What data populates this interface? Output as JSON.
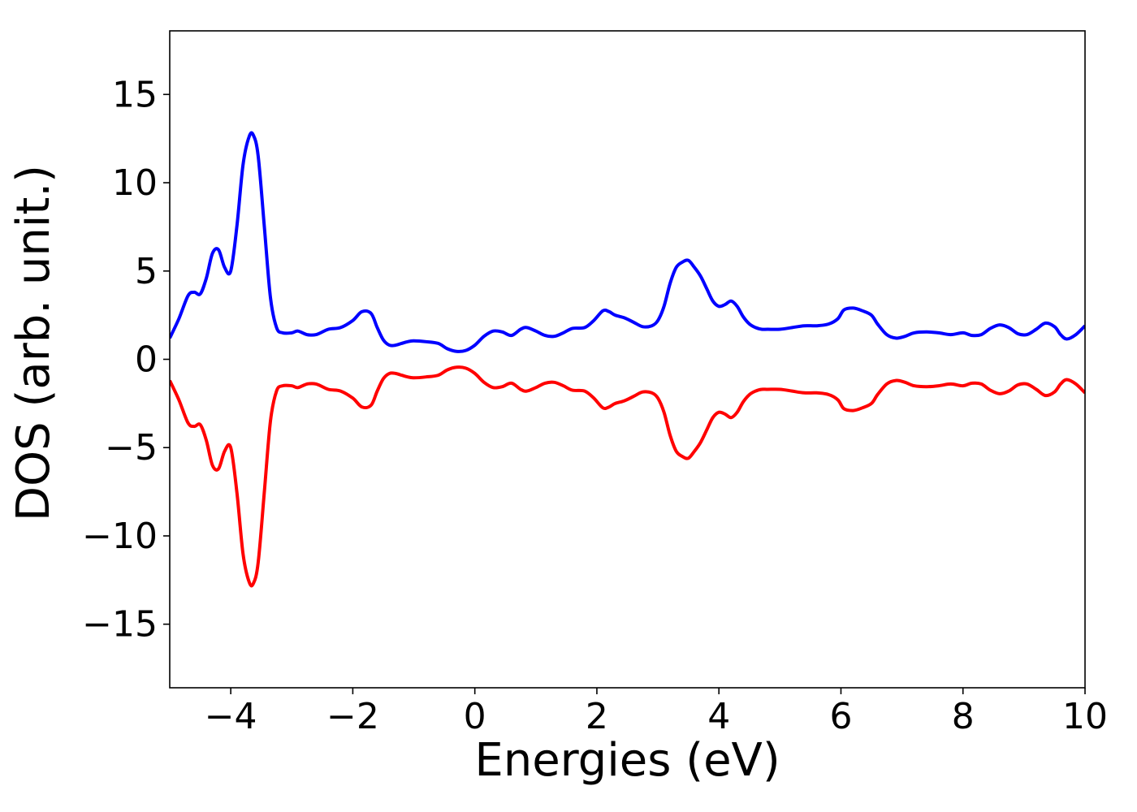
{
  "chart_data": {
    "type": "line",
    "title": "",
    "xlabel": "Energies (eV)",
    "ylabel": "DOS (arb. unit.)",
    "xlim": [
      -5,
      10
    ],
    "ylim": [
      -18.6,
      18.6
    ],
    "grid": false,
    "legend": "none",
    "x_ticks": [
      -4,
      -2,
      0,
      2,
      4,
      6,
      8,
      10
    ],
    "x_tick_labels": [
      "−4",
      "−2",
      "0",
      "2",
      "4",
      "6",
      "8",
      "10"
    ],
    "y_ticks": [
      15,
      10,
      5,
      0,
      -5,
      -10,
      -15
    ],
    "y_tick_labels": [
      "15",
      "10",
      "5",
      "0",
      "−5",
      "−10",
      "−15"
    ],
    "series": [
      {
        "color": "#0000ff",
        "x": [
          -5.0,
          -4.85,
          -4.7,
          -4.6,
          -4.5,
          -4.4,
          -4.3,
          -4.2,
          -4.1,
          -4.0,
          -3.9,
          -3.8,
          -3.7,
          -3.63,
          -3.55,
          -3.45,
          -3.35,
          -3.25,
          -3.15,
          -3.0,
          -2.9,
          -2.75,
          -2.6,
          -2.4,
          -2.2,
          -2.0,
          -1.85,
          -1.7,
          -1.6,
          -1.5,
          -1.4,
          -1.3,
          -1.2,
          -1.1,
          -1.0,
          -0.8,
          -0.6,
          -0.45,
          -0.3,
          -0.15,
          0.0,
          0.15,
          0.3,
          0.45,
          0.6,
          0.75,
          0.85,
          1.0,
          1.15,
          1.3,
          1.45,
          1.6,
          1.8,
          1.95,
          2.1,
          2.2,
          2.3,
          2.45,
          2.6,
          2.75,
          2.9,
          3.0,
          3.1,
          3.2,
          3.3,
          3.4,
          3.5,
          3.6,
          3.7,
          3.8,
          3.9,
          4.0,
          4.1,
          4.2,
          4.3,
          4.4,
          4.5,
          4.6,
          4.7,
          4.8,
          5.0,
          5.2,
          5.4,
          5.6,
          5.8,
          5.95,
          6.05,
          6.2,
          6.35,
          6.5,
          6.6,
          6.75,
          6.9,
          7.05,
          7.2,
          7.4,
          7.6,
          7.8,
          8.0,
          8.15,
          8.3,
          8.45,
          8.6,
          8.75,
          8.9,
          9.05,
          9.2,
          9.35,
          9.5,
          9.6,
          9.7,
          9.85,
          10.0
        ],
        "y": [
          1.2,
          2.3,
          3.6,
          3.8,
          3.7,
          4.6,
          6.0,
          6.2,
          5.2,
          5.0,
          7.5,
          11.0,
          12.6,
          12.7,
          11.5,
          7.5,
          3.5,
          1.8,
          1.5,
          1.5,
          1.6,
          1.4,
          1.4,
          1.7,
          1.8,
          2.2,
          2.7,
          2.6,
          1.8,
          1.1,
          0.8,
          0.8,
          0.9,
          1.0,
          1.05,
          1.0,
          0.9,
          0.6,
          0.45,
          0.5,
          0.8,
          1.3,
          1.6,
          1.55,
          1.35,
          1.7,
          1.8,
          1.6,
          1.35,
          1.3,
          1.5,
          1.75,
          1.8,
          2.2,
          2.75,
          2.7,
          2.5,
          2.35,
          2.1,
          1.85,
          1.9,
          2.2,
          3.0,
          4.3,
          5.2,
          5.5,
          5.6,
          5.2,
          4.7,
          4.0,
          3.3,
          3.0,
          3.1,
          3.3,
          3.0,
          2.4,
          2.0,
          1.8,
          1.7,
          1.7,
          1.7,
          1.8,
          1.9,
          1.9,
          2.0,
          2.3,
          2.8,
          2.9,
          2.75,
          2.5,
          2.0,
          1.4,
          1.2,
          1.3,
          1.5,
          1.55,
          1.5,
          1.4,
          1.5,
          1.35,
          1.4,
          1.75,
          1.95,
          1.8,
          1.45,
          1.4,
          1.7,
          2.05,
          1.85,
          1.4,
          1.15,
          1.4,
          1.9
        ]
      },
      {
        "color": "#ff0000",
        "x": [
          -5.0,
          -4.85,
          -4.7,
          -4.6,
          -4.5,
          -4.4,
          -4.3,
          -4.2,
          -4.1,
          -4.0,
          -3.9,
          -3.8,
          -3.7,
          -3.63,
          -3.55,
          -3.45,
          -3.35,
          -3.25,
          -3.15,
          -3.0,
          -2.9,
          -2.75,
          -2.6,
          -2.4,
          -2.2,
          -2.0,
          -1.85,
          -1.7,
          -1.6,
          -1.5,
          -1.4,
          -1.3,
          -1.2,
          -1.1,
          -1.0,
          -0.8,
          -0.6,
          -0.45,
          -0.3,
          -0.15,
          0.0,
          0.15,
          0.3,
          0.45,
          0.6,
          0.75,
          0.85,
          1.0,
          1.15,
          1.3,
          1.45,
          1.6,
          1.8,
          1.95,
          2.1,
          2.2,
          2.3,
          2.45,
          2.6,
          2.75,
          2.9,
          3.0,
          3.1,
          3.2,
          3.3,
          3.4,
          3.5,
          3.6,
          3.7,
          3.8,
          3.9,
          4.0,
          4.1,
          4.2,
          4.3,
          4.4,
          4.5,
          4.6,
          4.7,
          4.8,
          5.0,
          5.2,
          5.4,
          5.6,
          5.8,
          5.95,
          6.05,
          6.2,
          6.35,
          6.5,
          6.6,
          6.75,
          6.9,
          7.05,
          7.2,
          7.4,
          7.6,
          7.8,
          8.0,
          8.15,
          8.3,
          8.45,
          8.6,
          8.75,
          8.9,
          9.05,
          9.2,
          9.35,
          9.5,
          9.6,
          9.7,
          9.85,
          10.0
        ],
        "y": [
          -1.2,
          -2.3,
          -3.6,
          -3.8,
          -3.7,
          -4.6,
          -6.0,
          -6.2,
          -5.2,
          -5.0,
          -7.5,
          -11.0,
          -12.6,
          -12.7,
          -11.5,
          -7.5,
          -3.5,
          -1.8,
          -1.5,
          -1.5,
          -1.6,
          -1.4,
          -1.4,
          -1.7,
          -1.8,
          -2.2,
          -2.7,
          -2.6,
          -1.8,
          -1.1,
          -0.8,
          -0.8,
          -0.9,
          -1.0,
          -1.05,
          -1.0,
          -0.9,
          -0.6,
          -0.45,
          -0.5,
          -0.8,
          -1.3,
          -1.6,
          -1.55,
          -1.35,
          -1.7,
          -1.8,
          -1.6,
          -1.35,
          -1.3,
          -1.5,
          -1.75,
          -1.8,
          -2.2,
          -2.75,
          -2.7,
          -2.5,
          -2.35,
          -2.1,
          -1.85,
          -1.9,
          -2.2,
          -3.0,
          -4.3,
          -5.2,
          -5.5,
          -5.6,
          -5.2,
          -4.7,
          -4.0,
          -3.3,
          -3.0,
          -3.1,
          -3.3,
          -3.0,
          -2.4,
          -2.0,
          -1.8,
          -1.7,
          -1.7,
          -1.7,
          -1.8,
          -1.9,
          -1.9,
          -2.0,
          -2.3,
          -2.8,
          -2.9,
          -2.75,
          -2.5,
          -2.0,
          -1.4,
          -1.2,
          -1.3,
          -1.5,
          -1.55,
          -1.5,
          -1.4,
          -1.5,
          -1.35,
          -1.4,
          -1.75,
          -1.95,
          -1.8,
          -1.45,
          -1.4,
          -1.7,
          -2.05,
          -1.85,
          -1.4,
          -1.15,
          -1.4,
          -1.9
        ]
      }
    ]
  }
}
